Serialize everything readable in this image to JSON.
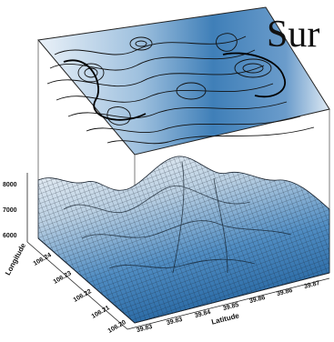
{
  "chart_data": {
    "type": "surface",
    "title": "Sur",
    "xlabel": "Latitude",
    "ylabel": "Longitude",
    "z_ticks": [
      "8000",
      "7000",
      "6000"
    ],
    "x_ticks": [
      "39.83",
      "39.83",
      "39.84",
      "39.85",
      "39.86",
      "39.86",
      "39.87"
    ],
    "y_ticks": [
      "106.24",
      "106.23",
      "106.22",
      "106.21",
      "106.20"
    ],
    "colors": {
      "low": "#1d5f97",
      "mid": "#5d93c4",
      "high": "#eef3f8",
      "mesh": "#1a2430"
    }
  }
}
